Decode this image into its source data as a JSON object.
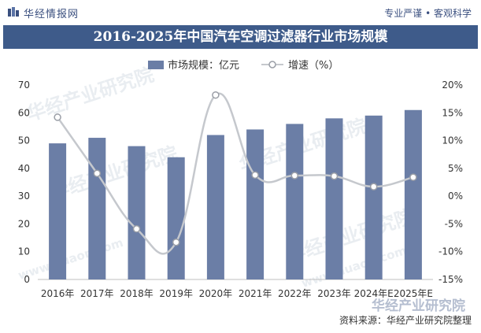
{
  "header": {
    "brand": "华经情报网",
    "slogan": "专业严谨 • 客观科学"
  },
  "chart_data": {
    "type": "bar+line",
    "title": "2016-2025年中国汽车空调过滤器行业市场规模",
    "categories": [
      "2016年",
      "2017年",
      "2018年",
      "2019年",
      "2020年",
      "2021年",
      "2022年",
      "2023年",
      "2024年E",
      "2025年E"
    ],
    "series": [
      {
        "name": "市场规模：亿元",
        "type": "bar",
        "axis": "left",
        "values": [
          49,
          51,
          48,
          44,
          52,
          54,
          56,
          58,
          59,
          61
        ]
      },
      {
        "name": "增速（%）",
        "type": "line",
        "axis": "right",
        "values": [
          14.2,
          4.1,
          -5.9,
          -8.3,
          18.2,
          3.8,
          3.7,
          3.6,
          1.7,
          3.4
        ]
      }
    ],
    "y_left": {
      "min": 0,
      "max": 70,
      "ticks": [
        "0",
        "10",
        "20",
        "30",
        "40",
        "50",
        "60",
        "70"
      ]
    },
    "y_right": {
      "min": -15,
      "max": 20,
      "ticks": [
        "-15%",
        "-10%",
        "-5%",
        "0%",
        "5%",
        "10%",
        "15%",
        "20%"
      ]
    },
    "legend_position": "top-center",
    "grid": false,
    "colors": {
      "bar": "#6b7ea6",
      "line": "#c5c8cd",
      "marker_fill": "#ffffff",
      "marker_stroke": "#9a9ea6"
    }
  },
  "footer": {
    "source": "资料来源：华经产业研究院整理"
  },
  "watermark": {
    "text": "华经产业研究院",
    "url": "www.huaon.com"
  }
}
